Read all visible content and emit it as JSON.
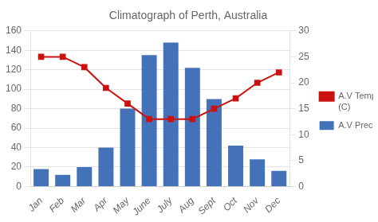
{
  "chart_data": {
    "type": "bar",
    "title": "Climatograph of Perth, Australia",
    "categories": [
      "Jan",
      "Feb",
      "Mar",
      "Apr",
      "May",
      "June",
      "July",
      "Aug",
      "Sept",
      "Oct",
      "Nov",
      "Dec"
    ],
    "series": [
      {
        "name": "A.V Precipitation",
        "type": "bar",
        "color": "#4472b8",
        "values": [
          18,
          12,
          20,
          40,
          80,
          135,
          148,
          122,
          90,
          42,
          28,
          16
        ]
      },
      {
        "name": "A.V Temperature\n(C)",
        "type": "line",
        "color": "#cc1111",
        "marker": "square",
        "axis": "y2",
        "values": [
          25,
          25,
          23,
          19,
          16,
          13,
          13,
          13,
          15,
          17,
          20,
          22
        ]
      }
    ],
    "ylim": [
      0,
      160
    ],
    "yticks": [
      0,
      20,
      40,
      60,
      80,
      100,
      120,
      140,
      160
    ],
    "y2lim": [
      0,
      30
    ],
    "y2ticks": [
      0,
      5,
      10,
      15,
      20,
      25,
      30
    ],
    "grid": true,
    "legend": "right"
  }
}
